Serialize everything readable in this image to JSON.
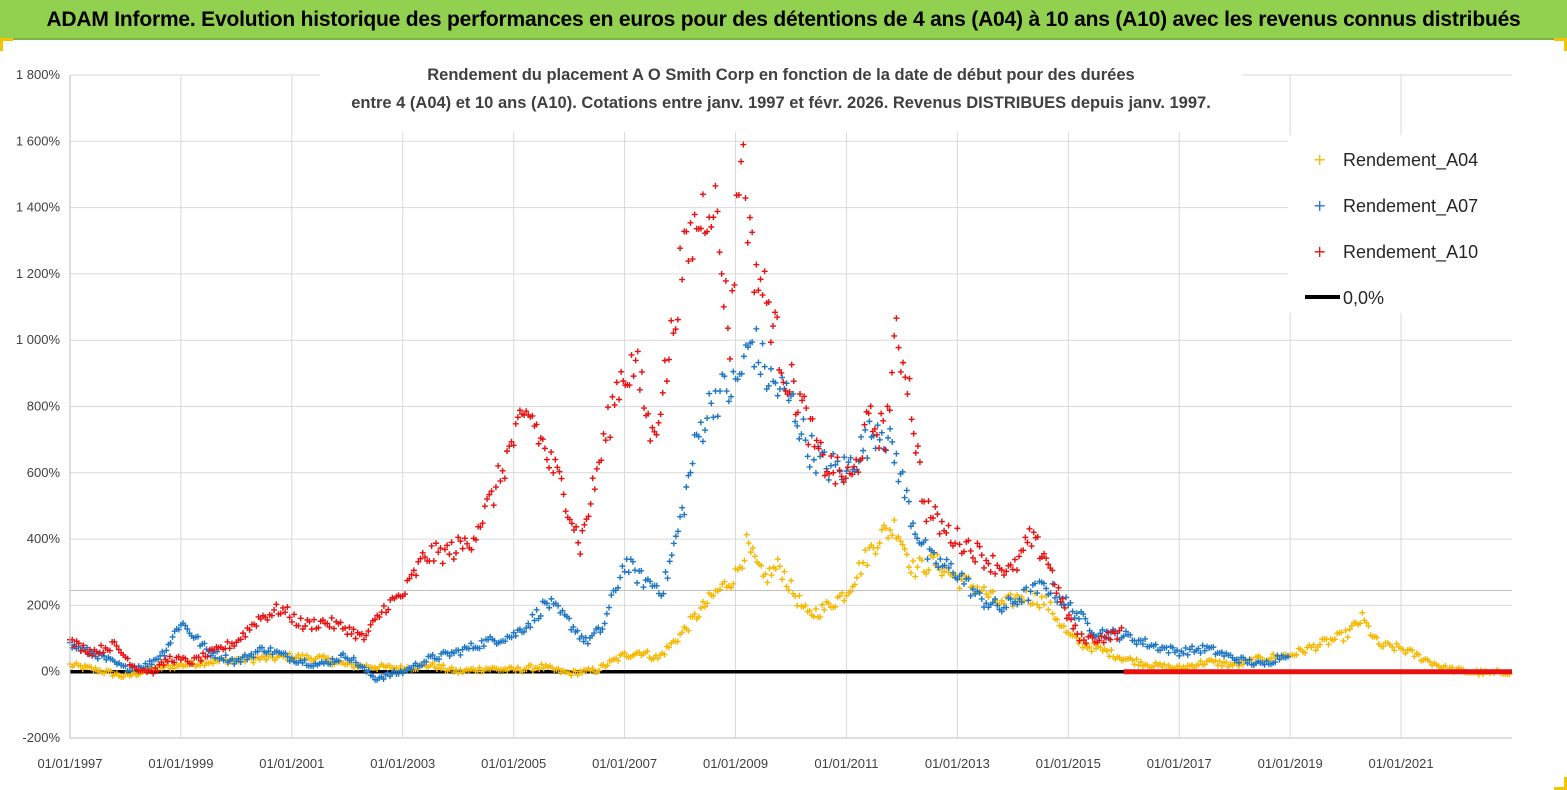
{
  "banner": {
    "title": "ADAM Informe. Evolution historique des performances en euros pour des détentions de 4 ans (A04) à 10 ans (A10) avec les revenus connus distribués"
  },
  "chart_data": {
    "type": "scatter",
    "title_line1": "Rendement du placement A O Smith Corp en fonction de la date de début pour des durées",
    "title_line2": "entre 4 (A04) et 10 ans (A10). Cotations entre janv. 1997 et févr. 2026. Revenus DISTRIBUES depuis janv. 1997.",
    "xlabel": "",
    "ylabel": "",
    "xlim": [
      1997.0,
      2023.0
    ],
    "ylim": [
      -200,
      1800
    ],
    "y_ticks": [
      -200,
      0,
      200,
      400,
      600,
      800,
      1000,
      1200,
      1400,
      1600,
      1800
    ],
    "y_tick_labels": [
      "-200%",
      "0%",
      "200%",
      "400%",
      "600%",
      "800%",
      "1 000%",
      "1 200%",
      "1 400%",
      "1 600%",
      "1 800%"
    ],
    "x_ticks": [
      1997,
      1999,
      2001,
      2003,
      2005,
      2007,
      2009,
      2011,
      2013,
      2015,
      2017,
      2019,
      2021
    ],
    "x_tick_labels": [
      "01/01/1997",
      "01/01/1999",
      "01/01/2001",
      "01/01/2003",
      "01/01/2005",
      "01/01/2007",
      "01/01/2009",
      "01/01/2011",
      "01/01/2013",
      "01/01/2015",
      "01/01/2017",
      "01/01/2019",
      "01/01/2021"
    ],
    "grid": true,
    "legend_position": "top-right",
    "series": [
      {
        "name": "Rendement_A04",
        "color": "#f5b800",
        "marker": "+",
        "x": [
          1997.0,
          1997.5,
          1998.0,
          1998.5,
          1999.0,
          1999.5,
          2000.0,
          2000.5,
          2001.0,
          2001.5,
          2002.0,
          2002.5,
          2003.0,
          2003.5,
          2004.0,
          2004.5,
          2005.0,
          2005.5,
          2006.0,
          2006.5,
          2007.0,
          2007.3,
          2007.6,
          2008.0,
          2008.3,
          2008.6,
          2009.0,
          2009.2,
          2009.5,
          2009.8,
          2010.0,
          2010.3,
          2010.6,
          2011.0,
          2011.3,
          2011.6,
          2011.9,
          2012.2,
          2012.6,
          2013.0,
          2013.4,
          2013.8,
          2014.2,
          2014.6,
          2015.0,
          2015.3,
          2015.7,
          2016.0,
          2016.5,
          2017.0,
          2017.5,
          2018.0,
          2018.5,
          2019.0,
          2019.5,
          2020.0,
          2020.3,
          2020.6,
          2021.0,
          2021.4,
          2021.8,
          2022.2,
          2022.6,
          2023.0
        ],
        "y": [
          20,
          5,
          -15,
          10,
          20,
          30,
          35,
          40,
          45,
          40,
          20,
          15,
          10,
          20,
          0,
          10,
          5,
          15,
          -5,
          5,
          50,
          60,
          40,
          110,
          170,
          230,
          290,
          380,
          280,
          320,
          250,
          170,
          190,
          240,
          330,
          410,
          440,
          310,
          330,
          280,
          250,
          200,
          230,
          210,
          110,
          80,
          60,
          40,
          20,
          10,
          30,
          20,
          40,
          50,
          80,
          110,
          160,
          80,
          70,
          40,
          10,
          0,
          -5,
          0
        ]
      },
      {
        "name": "Rendement_A07",
        "color": "#1f77c4",
        "marker": "+",
        "x": [
          1997.0,
          1997.5,
          1998.0,
          1998.4,
          1998.7,
          1999.0,
          1999.5,
          2000.0,
          2000.5,
          2001.0,
          2001.5,
          2002.0,
          2002.5,
          2003.0,
          2003.5,
          2004.0,
          2004.5,
          2005.0,
          2005.3,
          2005.6,
          2006.0,
          2006.3,
          2006.6,
          2007.0,
          2007.3,
          2007.7,
          2008.0,
          2008.3,
          2008.6,
          2009.0,
          2009.3,
          2009.6,
          2010.0,
          2010.3,
          2010.6,
          2011.0,
          2011.3,
          2011.6,
          2011.9,
          2012.2,
          2012.5,
          2013.0,
          2013.4,
          2013.8,
          2014.2,
          2014.6,
          2015.0,
          2015.5,
          2016.0,
          2016.5,
          2017.0,
          2017.5,
          2018.0,
          2018.5,
          2019.0
        ],
        "y": [
          80,
          50,
          10,
          20,
          60,
          150,
          60,
          30,
          70,
          40,
          20,
          50,
          -20,
          0,
          40,
          60,
          90,
          110,
          150,
          210,
          150,
          90,
          130,
          330,
          280,
          250,
          450,
          700,
          830,
          860,
          1000,
          880,
          820,
          680,
          620,
          610,
          680,
          750,
          640,
          450,
          340,
          300,
          220,
          190,
          230,
          260,
          200,
          120,
          110,
          80,
          60,
          70,
          40,
          20,
          60
        ]
      },
      {
        "name": "Rendement_A10",
        "color": "#e81010",
        "marker": "+",
        "x": [
          1997.0,
          1997.4,
          1997.8,
          1998.2,
          1998.5,
          1998.8,
          1999.2,
          1999.6,
          2000.0,
          2000.4,
          2000.8,
          2001.2,
          2001.6,
          2002.0,
          2002.3,
          2002.7,
          2003.0,
          2003.4,
          2003.8,
          2004.2,
          2004.6,
          2005.0,
          2005.3,
          2005.6,
          2005.9,
          2006.2,
          2006.5,
          2006.9,
          2007.2,
          2007.5,
          2007.8,
          2008.0,
          2008.3,
          2008.6,
          2008.9,
          2009.1,
          2009.3,
          2009.6,
          2009.9,
          2010.2,
          2010.5,
          2010.8,
          2011.1,
          2011.4,
          2011.7,
          2011.9,
          2012.1,
          2012.4,
          2012.8,
          2013.2,
          2013.6,
          2014.0,
          2014.3,
          2014.6,
          2014.9,
          2015.2,
          2015.6,
          2016.0
        ],
        "y": [
          90,
          60,
          80,
          10,
          0,
          40,
          30,
          60,
          90,
          160,
          190,
          140,
          150,
          130,
          100,
          200,
          230,
          350,
          360,
          390,
          520,
          700,
          780,
          650,
          550,
          380,
          600,
          880,
          930,
          700,
          950,
          1200,
          1350,
          1450,
          1000,
          1600,
          1250,
          1100,
          900,
          800,
          650,
          600,
          580,
          750,
          720,
          1000,
          900,
          500,
          420,
          380,
          330,
          300,
          400,
          350,
          200,
          100,
          100,
          120
        ]
      },
      {
        "name": "0,0%",
        "color": "#000000",
        "type": "line",
        "x": [
          1997.0,
          2023.0
        ],
        "y": [
          0,
          0
        ]
      }
    ],
    "zero_a10_segment": {
      "x_start": 2016.0,
      "x_end": 2023.0,
      "y": 0
    }
  }
}
